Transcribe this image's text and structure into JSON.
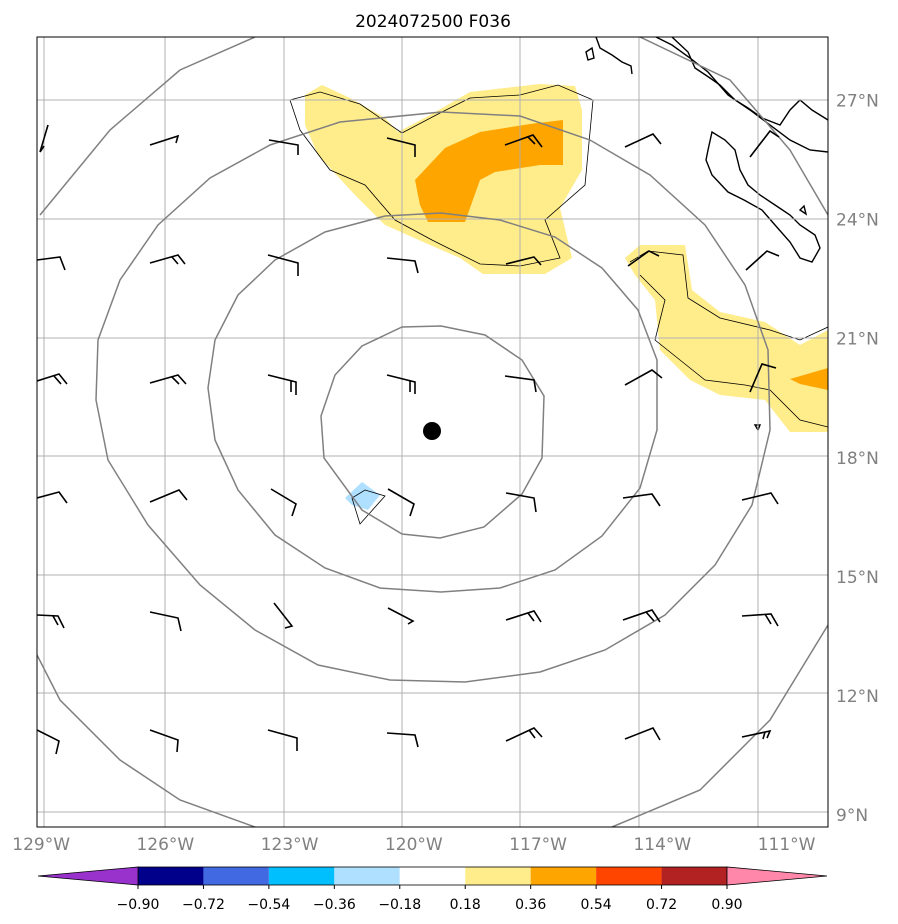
{
  "chart_data": {
    "type": "map",
    "title": "2024072500 F036",
    "projection": "lat-lon",
    "lon_range": [
      -129.1,
      -110.0
    ],
    "lat_range": [
      8.7,
      28.6
    ],
    "lon_ticks": [
      "129°W",
      "126°W",
      "123°W",
      "120°W",
      "117°W",
      "114°W",
      "111°W"
    ],
    "lon_tick_values": [
      -129,
      -126,
      -123,
      -120,
      -117,
      -114,
      -111
    ],
    "lat_ticks": [
      "27°N",
      "24°N",
      "21°N",
      "18°N",
      "15°N",
      "12°N",
      "9°N"
    ],
    "lat_tick_values": [
      27,
      24,
      21,
      18,
      15,
      12,
      9
    ],
    "grid": true,
    "center_marker": {
      "lon": -119.3,
      "lat": 18.6
    },
    "range_rings_deg": [
      2.8,
      5.6,
      8.4,
      11.2
    ],
    "colorbar": {
      "ticks": [
        "−0.90",
        "−0.72",
        "−0.54",
        "−0.36",
        "−0.18",
        "0.18",
        "0.36",
        "0.54",
        "0.72",
        "0.90"
      ],
      "tick_values": [
        -0.9,
        -0.72,
        -0.54,
        -0.36,
        -0.18,
        0.18,
        0.36,
        0.54,
        0.72,
        0.9
      ],
      "colors": [
        "#9932cc",
        "#00008b",
        "#4169e1",
        "#00bfff",
        "#b0e0ff",
        "#ffffff",
        "#ffec8b",
        "#ffa500",
        "#ff4500",
        "#b22222",
        "#ff88aa"
      ],
      "extend": "both"
    },
    "wind_barbs": {
      "lons": [
        -128.9,
        -125.9,
        -122.9,
        -119.9,
        -116.9,
        -113.9,
        -110.9
      ],
      "lats": [
        26.0,
        23.0,
        20.0,
        17.0,
        14.0,
        11.0
      ],
      "speeds_kt": [
        [
          10,
          10,
          10,
          10,
          15,
          10,
          10
        ],
        [
          10,
          15,
          10,
          10,
          10,
          10,
          10
        ],
        [
          10,
          15,
          15,
          15,
          15,
          10,
          10
        ],
        [
          10,
          10,
          10,
          10,
          10,
          10,
          10
        ],
        [
          10,
          15,
          10,
          10,
          10,
          15,
          15
        ],
        [
          10,
          10,
          10,
          10,
          15,
          10,
          15
        ]
      ]
    }
  }
}
